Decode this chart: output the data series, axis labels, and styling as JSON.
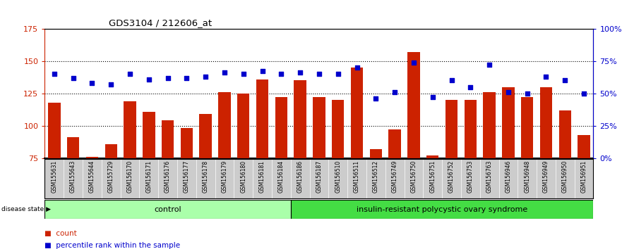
{
  "title": "GDS3104 / 212606_at",
  "samples": [
    "GSM155631",
    "GSM155643",
    "GSM155644",
    "GSM155729",
    "GSM156170",
    "GSM156171",
    "GSM156176",
    "GSM156177",
    "GSM156178",
    "GSM156179",
    "GSM156180",
    "GSM156181",
    "GSM156184",
    "GSM156186",
    "GSM156187",
    "GSM156510",
    "GSM156511",
    "GSM156512",
    "GSM156749",
    "GSM156750",
    "GSM156751",
    "GSM156752",
    "GSM156753",
    "GSM156763",
    "GSM156946",
    "GSM156948",
    "GSM156949",
    "GSM156950",
    "GSM156951"
  ],
  "counts": [
    118,
    91,
    76,
    86,
    119,
    111,
    104,
    98,
    109,
    126,
    125,
    136,
    122,
    135,
    122,
    120,
    145,
    82,
    97,
    157,
    77,
    120,
    120,
    126,
    130,
    122,
    130,
    112,
    93
  ],
  "percentiles": [
    65,
    62,
    58,
    57,
    65,
    61,
    62,
    62,
    63,
    66,
    65,
    67,
    65,
    66,
    65,
    65,
    70,
    46,
    51,
    74,
    47,
    60,
    55,
    72,
    51,
    50,
    63,
    60,
    50
  ],
  "control_count": 13,
  "disease_count": 16,
  "ymin": 75,
  "ymax": 175,
  "yticks_left": [
    75,
    100,
    125,
    150,
    175
  ],
  "yticks_right": [
    0,
    25,
    50,
    75,
    100
  ],
  "ytick_labels_right": [
    "0%",
    "25%",
    "50%",
    "75%",
    "100%"
  ],
  "bar_color": "#cc2200",
  "dot_color": "#0000cc",
  "control_color": "#aaffaa",
  "disease_color": "#44dd44",
  "label_bg": "#cccccc",
  "bar_width": 0.65
}
